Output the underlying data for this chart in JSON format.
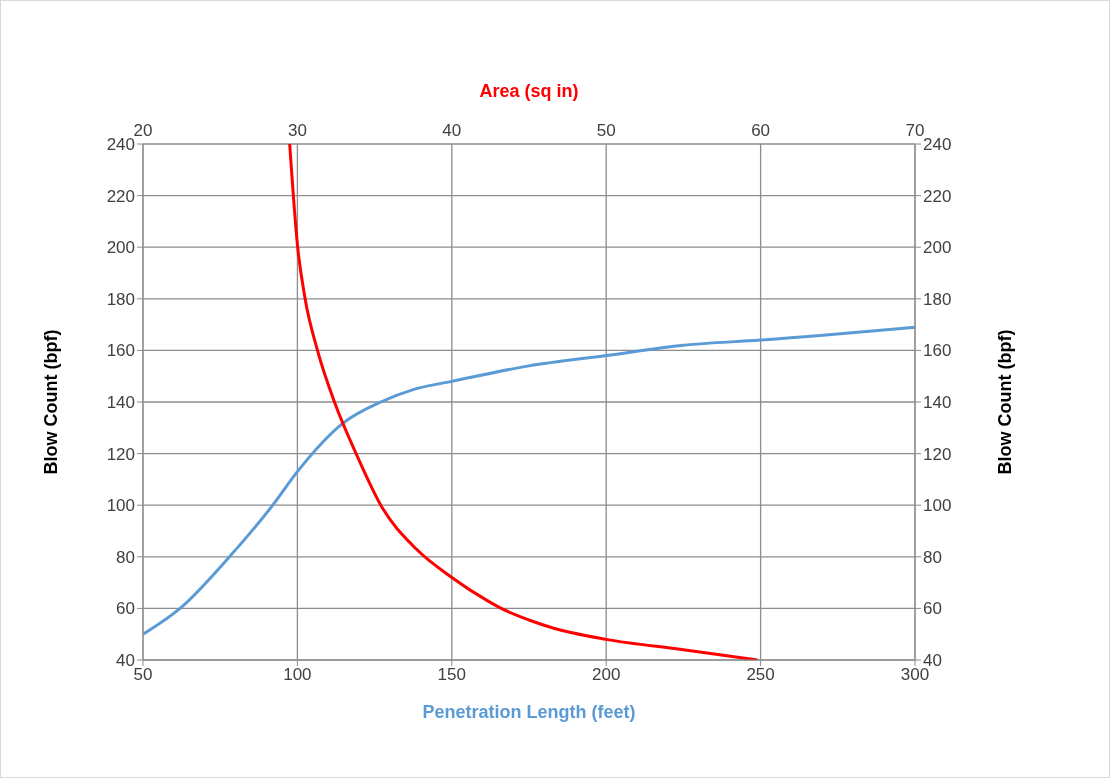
{
  "chart_data": {
    "type": "line",
    "xlabel": "Penetration Length (feet)",
    "x2label": "Area (sq in)",
    "ylabel": "Blow Count (bpf)",
    "y2label": "Blow Count (bpf)",
    "xlim": [
      50,
      300
    ],
    "xticks": [
      50,
      100,
      150,
      200,
      250,
      300
    ],
    "x2lim": [
      20,
      70
    ],
    "x2ticks": [
      20,
      30,
      40,
      50,
      60,
      70
    ],
    "ylim": [
      40,
      240
    ],
    "yticks": [
      40,
      60,
      80,
      100,
      120,
      140,
      160,
      180,
      200,
      220,
      240
    ],
    "y2lim": [
      40,
      240
    ],
    "y2ticks": [
      40,
      60,
      80,
      100,
      120,
      140,
      160,
      180,
      200,
      220,
      240
    ],
    "grid": true,
    "line_style": "solid",
    "marker": "none",
    "series": [
      {
        "color": "#5b9bd5",
        "x": [
          50,
          62,
          78,
          92,
          100,
          115,
          127,
          138,
          150,
          175,
          200,
          225,
          250,
          300
        ],
        "values": [
          50,
          60,
          80,
          100,
          113,
          132,
          140,
          145,
          148,
          154,
          158,
          162,
          164,
          169
        ]
      },
      {
        "color": "#ff0000",
        "axis": "x2",
        "x": [
          29.5,
          30,
          30.5,
          31.3,
          32.4,
          33.8,
          35.4,
          37.7,
          40,
          42.3,
          43.2,
          45,
          46.5,
          50,
          55,
          59.8
        ],
        "values": [
          240,
          201,
          180,
          160,
          140,
          120,
          100,
          83,
          72,
          63,
          60,
          55.5,
          52.5,
          48,
          44,
          40
        ]
      }
    ]
  }
}
